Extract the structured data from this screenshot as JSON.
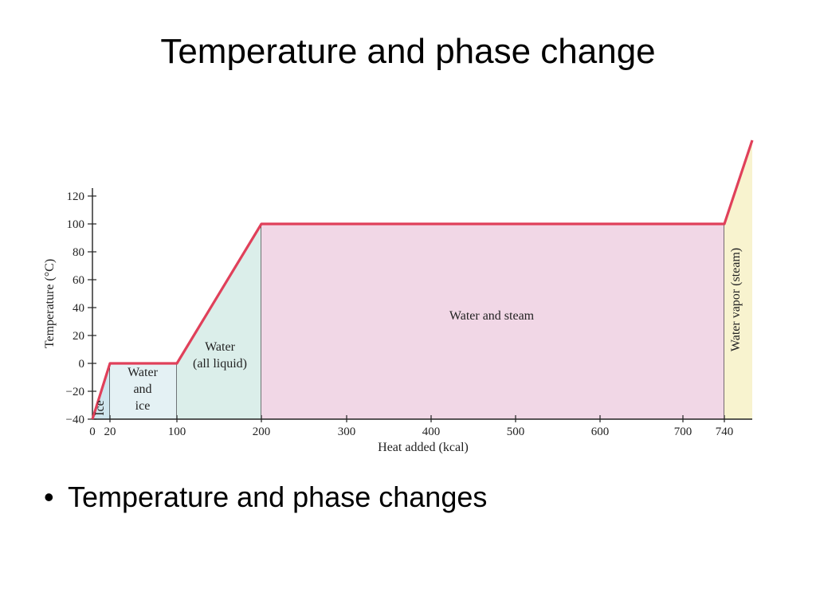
{
  "slide": {
    "title": "Temperature and phase change",
    "bullets": [
      {
        "marker": "•",
        "text": "Temperature and phase changes"
      }
    ]
  },
  "colors": {
    "curve": "#e0405a",
    "ice_region": "#cfe6ee",
    "water_ice_region": "#e4f1f4",
    "liquid_region": "#dbeeea",
    "water_steam_region": "#f1d7e6",
    "vapor_region": "#f8f3cf",
    "axis": "#222222"
  },
  "chart_data": {
    "type": "line",
    "xlabel": "Heat added (kcal)",
    "ylabel": "Temperature (°C)",
    "xlim": [
      0,
      740
    ],
    "ylim": [
      -40,
      120
    ],
    "x_ticks": [
      0,
      20,
      100,
      200,
      300,
      400,
      500,
      600,
      700,
      740
    ],
    "y_ticks": [
      -40,
      -20,
      0,
      20,
      40,
      60,
      80,
      100,
      120
    ],
    "x_tick_labels": [
      "0",
      "20",
      "100",
      "200",
      "300",
      "400",
      "500",
      "600",
      "700",
      "740"
    ],
    "y_tick_labels": [
      "−40",
      "−20",
      "0",
      "20",
      "40",
      "60",
      "80",
      "100",
      "120"
    ],
    "series": [
      {
        "points": [
          [
            0,
            -40
          ],
          [
            20,
            0
          ],
          [
            100,
            0
          ],
          [
            200,
            100
          ],
          [
            740,
            100
          ],
          [
            775,
            160
          ]
        ]
      }
    ],
    "regions": [
      {
        "label": "Ice",
        "x": [
          0,
          20
        ],
        "orientation": "vertical"
      },
      {
        "label": "Water\nand\nice",
        "x": [
          20,
          100
        ]
      },
      {
        "label": "Water\n(all liquid)",
        "x": [
          100,
          200
        ]
      },
      {
        "label": "Water and steam",
        "x": [
          200,
          740
        ]
      },
      {
        "label": "Water vapor (steam)",
        "x": [
          740,
          775
        ],
        "orientation": "vertical"
      }
    ]
  }
}
